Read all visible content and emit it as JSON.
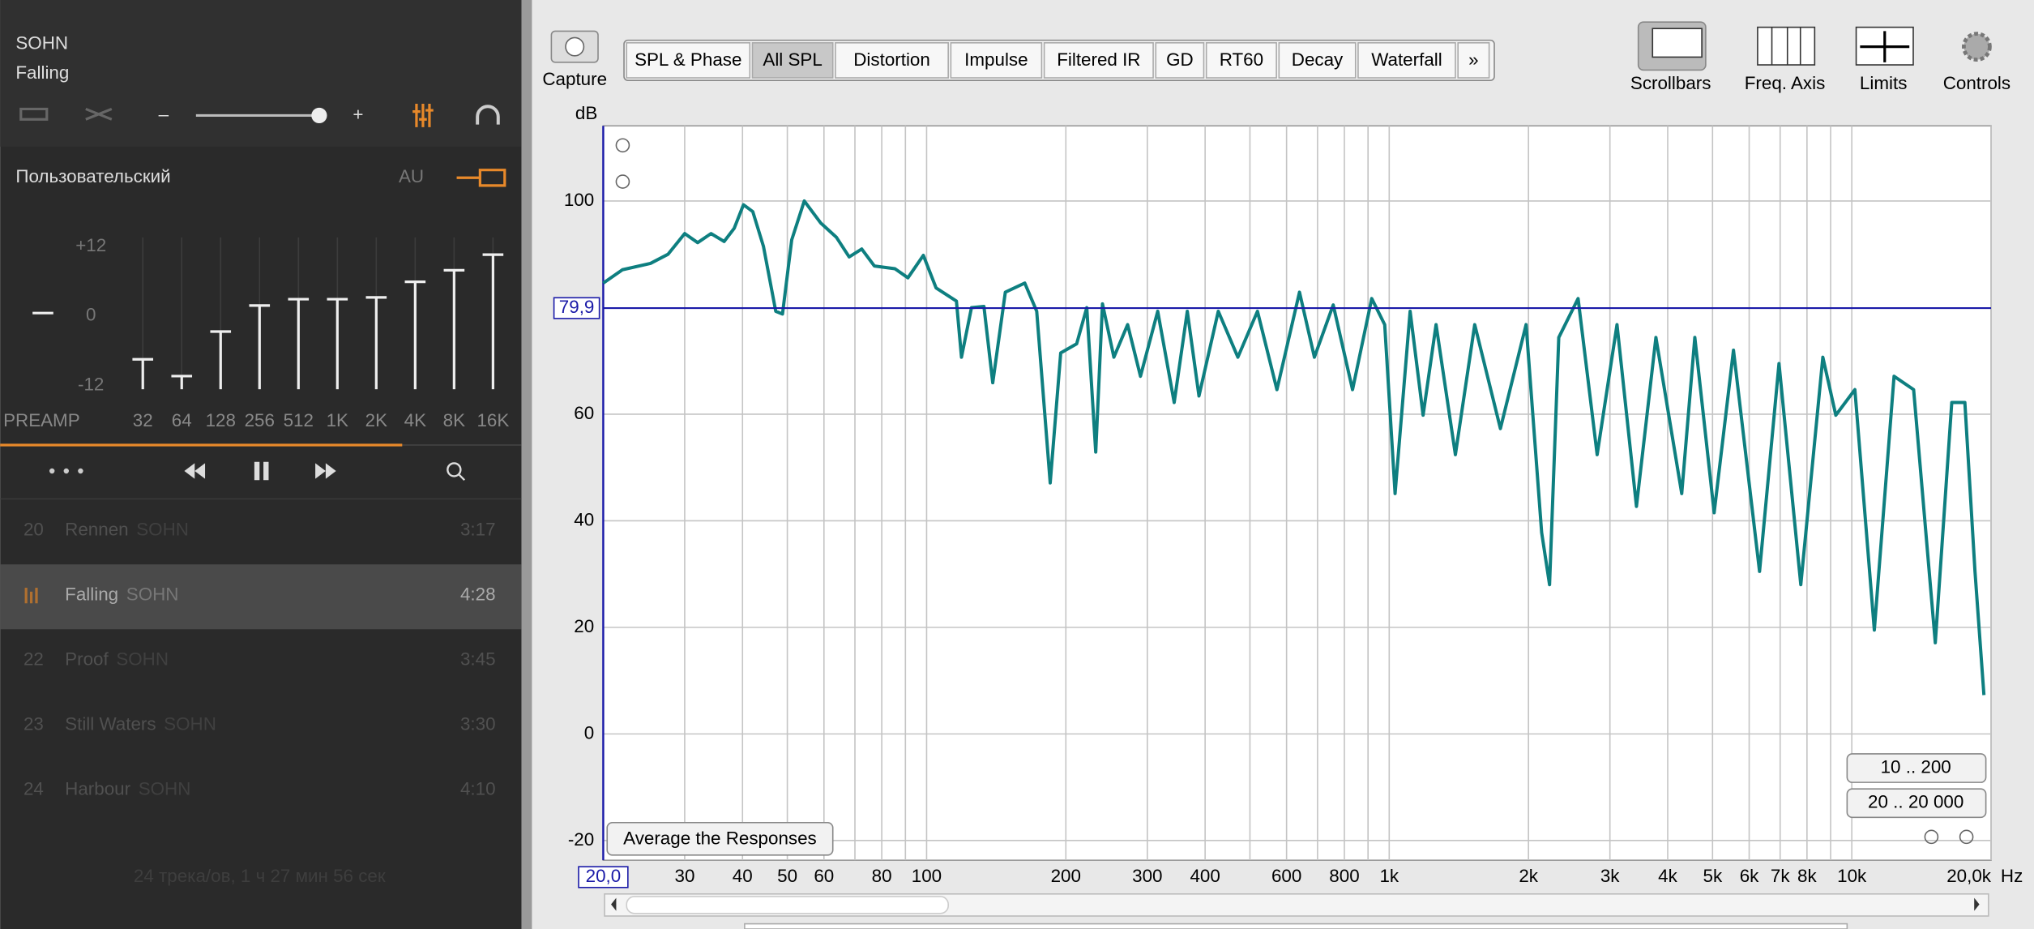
{
  "player": {
    "artist": "SOHN",
    "title": "Falling",
    "volume_minus": "–",
    "volume_plus": "+",
    "equalizer": {
      "preset": "Пользовательский",
      "mode": "AU",
      "preamp_label": "PREAMP",
      "preamp": 0.5,
      "scale": [
        {
          "value": 12,
          "label": "+12"
        },
        0,
        -12
      ],
      "bands": [
        "32",
        "64",
        "128",
        "256",
        "512",
        "1K",
        "2K",
        "4K",
        "8K",
        "16K"
      ],
      "gains": [
        -7.5,
        -10.4,
        -2.7,
        1.8,
        2.9,
        2.9,
        3.2,
        5.9,
        7.9,
        10.6
      ]
    },
    "tracks": [
      {
        "number": "20",
        "title": "Rennen",
        "artist": "SOHN",
        "duration": "3:17"
      },
      {
        "title": "Falling",
        "artist": "SOHN",
        "duration": "4:28"
      },
      {
        "number": "22",
        "title": "Proof",
        "artist": "SOHN",
        "duration": "3:45"
      },
      {
        "number": "23",
        "title": "Still Waters",
        "artist": "SOHN",
        "duration": "3:30"
      },
      {
        "number": "24",
        "title": "Harbour",
        "artist": "SOHN",
        "duration": "4:10"
      }
    ],
    "summary": "24 трека/ов, 1 ч 27 мин 56 сек"
  },
  "toolbar": {
    "capture": "Capture",
    "tabs": [
      "SPL & Phase",
      "All SPL",
      "Distortion",
      "Impulse",
      "Filtered IR",
      "GD",
      "RT60",
      "Decay",
      "Waterfall",
      "»"
    ],
    "selected_tab": "All SPL",
    "tools": [
      "Scrollbars",
      "Freq. Axis",
      "Limits",
      "Controls"
    ]
  },
  "buttons": {
    "range_low": "10 .. 200",
    "range_full": "20 .. 20 000",
    "average": "Average the Responses"
  },
  "chart_data": {
    "type": "line",
    "y_label": "dB",
    "x_label": "Hz",
    "xscale": "log",
    "grid": true,
    "xlim": [
      20,
      20000
    ],
    "ylim": [
      -23.7,
      114.1
    ],
    "xticks": [
      {
        "value": 20,
        "label": "20,0"
      },
      30,
      40,
      50,
      60,
      80,
      100,
      200,
      300,
      400,
      600,
      800,
      {
        "value": 1000,
        "label": "1k"
      },
      {
        "value": 2000,
        "label": "2k"
      },
      {
        "value": 3000,
        "label": "3k"
      },
      {
        "value": 4000,
        "label": "4k"
      },
      {
        "value": 5000,
        "label": "5k"
      },
      {
        "value": 6000,
        "label": "6k"
      },
      {
        "value": 7000,
        "label": "7k"
      },
      {
        "value": 8000,
        "label": "8k"
      },
      {
        "value": 10000,
        "label": "10k"
      },
      {
        "value": 20000,
        "label": "20,0k"
      }
    ],
    "xminor": [
      70,
      90,
      500,
      700,
      900,
      9000
    ],
    "yticks": [
      -20,
      0,
      20,
      40,
      60,
      100
    ],
    "cursor": {
      "value": 79.9,
      "label": "79,9"
    },
    "x": [
      20,
      22,
      25.3,
      27.6,
      30,
      32,
      34.2,
      36.5,
      38.4,
      40.2,
      42.1,
      44.4,
      47.2,
      48.8,
      51.1,
      54.4,
      59,
      63.8,
      68,
      72.4,
      77.1,
      85.4,
      91.1,
      98.4,
      104.8,
      116,
      119,
      125,
      133,
      139,
      148,
      163,
      173,
      185,
      195,
      211,
      222,
      232,
      240,
      254,
      272,
      290,
      316,
      343,
      366,
      388,
      427,
      471,
      519,
      572,
      640,
      689,
      757,
      833,
      917,
      978,
      1030,
      1110,
      1184,
      1263,
      1390,
      1531,
      1739,
      1977,
      2136,
      2221,
      2326,
      2560,
      2816,
      3108,
      3424,
      3771,
      4290,
      4577,
      5040,
      5548,
      6316,
      6960,
      7757,
      8656,
      9233,
      10153,
      11190,
      12340,
      13600,
      15150,
      16450,
      17550,
      18460,
      19300
    ],
    "series": [
      {
        "color": "#0e7f80",
        "values": [
          84.6,
          87.1,
          88.3,
          90,
          93.9,
          92.2,
          93.9,
          92.4,
          94.9,
          99.3,
          98,
          91.5,
          79.3,
          78.8,
          92.7,
          100,
          95.9,
          93.2,
          89.5,
          91,
          87.8,
          87.3,
          85.6,
          89.8,
          83.7,
          81.2,
          70.7,
          80,
          80.2,
          65.9,
          82.9,
          84.6,
          79.3,
          47.1,
          71.5,
          73.2,
          80,
          52.9,
          80.7,
          70.7,
          76.8,
          67.1,
          79.3,
          62.2,
          79.3,
          63.4,
          79.3,
          70.7,
          79.3,
          64.6,
          82.9,
          70.7,
          80.5,
          64.6,
          81.7,
          76.8,
          45.1,
          79.3,
          59.8,
          76.8,
          52.4,
          76.8,
          57.3,
          76.8,
          37.8,
          28,
          74.4,
          81.7,
          52.4,
          76.8,
          42.7,
          74.4,
          45.1,
          74.4,
          41.5,
          72,
          30.5,
          69.5,
          28,
          70.7,
          59.8,
          64.6,
          19.5,
          67.1,
          64.6,
          17.1,
          62.2,
          62.2,
          30.5,
          7.3
        ]
      }
    ]
  }
}
